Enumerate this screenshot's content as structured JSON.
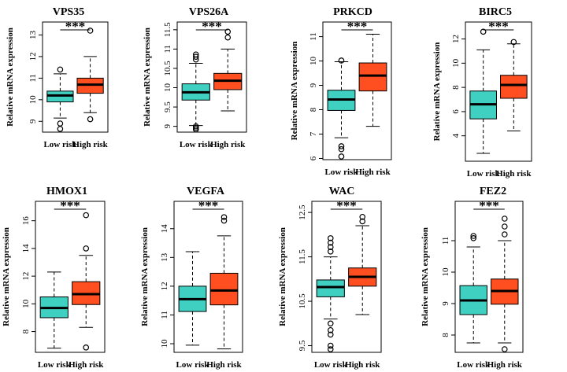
{
  "chart_data": [
    {
      "type": "box",
      "title": "VPS35",
      "ylabel": "Relative mRNA expression",
      "categories": [
        "Low risk",
        "High risk"
      ],
      "significance": "***",
      "ylim": [
        8.5,
        13.6
      ],
      "yticks": [
        9,
        10,
        11,
        12,
        13
      ],
      "colors": [
        "#3fd0c2",
        "#ff4e1f"
      ],
      "boxes": [
        {
          "whisker_low": 9.15,
          "q1": 9.9,
          "median": 10.2,
          "q3": 10.4,
          "whisker_high": 11.2,
          "outliers": [
            11.4,
            8.9,
            8.65
          ]
        },
        {
          "whisker_low": 9.4,
          "q1": 10.3,
          "median": 10.7,
          "q3": 11.0,
          "whisker_high": 12.0,
          "outliers": [
            13.2,
            9.1
          ]
        }
      ]
    },
    {
      "type": "box",
      "title": "VPS26A",
      "ylabel": "Relative mRNA expression",
      "categories": [
        "Low risk",
        "High risk"
      ],
      "significance": "***",
      "ylim": [
        8.85,
        11.7
      ],
      "yticks": [
        9.0,
        9.5,
        10.0,
        10.5,
        11.0,
        11.5
      ],
      "colors": [
        "#3fd0c2",
        "#ff4e1f"
      ],
      "boxes": [
        {
          "whisker_low": 9.02,
          "q1": 9.68,
          "median": 9.88,
          "q3": 10.1,
          "whisker_high": 10.63,
          "outliers": [
            10.86,
            10.8,
            10.73,
            9.0,
            8.96,
            8.92
          ]
        },
        {
          "whisker_low": 9.4,
          "q1": 9.95,
          "median": 10.18,
          "q3": 10.37,
          "whisker_high": 11.0,
          "outliers": [
            11.45,
            11.3
          ]
        }
      ]
    },
    {
      "type": "box",
      "title": "PRKCD",
      "ylabel": "Relative mRNA expression",
      "categories": [
        "Low risk",
        "High risk"
      ],
      "significance": "***",
      "ylim": [
        5.95,
        11.6
      ],
      "yticks": [
        6,
        7,
        8,
        9,
        10,
        11
      ],
      "colors": [
        "#3fd0c2",
        "#ff4e1f"
      ],
      "boxes": [
        {
          "whisker_low": 6.85,
          "q1": 7.97,
          "median": 8.42,
          "q3": 8.8,
          "whisker_high": 9.97,
          "outliers": [
            10.02,
            6.5,
            6.38,
            6.08
          ]
        },
        {
          "whisker_low": 7.32,
          "q1": 8.77,
          "median": 9.4,
          "q3": 9.92,
          "whisker_high": 11.1,
          "outliers": []
        }
      ]
    },
    {
      "type": "box",
      "title": "BIRC5",
      "ylabel": "Relative mRNA expression",
      "categories": [
        "Low risk",
        "High risk"
      ],
      "significance": "***",
      "ylim": [
        1.9,
        13.4
      ],
      "yticks": [
        4,
        6,
        8,
        10,
        12
      ],
      "colors": [
        "#3fd0c2",
        "#ff4e1f"
      ],
      "boxes": [
        {
          "whisker_low": 2.55,
          "q1": 5.4,
          "median": 6.6,
          "q3": 7.7,
          "whisker_high": 11.1,
          "outliers": [
            12.6
          ]
        },
        {
          "whisker_low": 4.4,
          "q1": 7.1,
          "median": 8.2,
          "q3": 9.0,
          "whisker_high": 11.6,
          "outliers": [
            11.75
          ]
        }
      ]
    },
    {
      "type": "box",
      "title": "HMOX1",
      "ylabel": "Relative mRNA expression",
      "categories": [
        "Low risk",
        "High risk"
      ],
      "significance": "***",
      "ylim": [
        6.5,
        17.4
      ],
      "yticks": [
        8,
        10,
        12,
        14,
        16
      ],
      "colors": [
        "#3fd0c2",
        "#ff4e1f"
      ],
      "boxes": [
        {
          "whisker_low": 6.8,
          "q1": 9.0,
          "median": 9.7,
          "q3": 10.5,
          "whisker_high": 12.3,
          "outliers": []
        },
        {
          "whisker_low": 8.3,
          "q1": 9.95,
          "median": 10.7,
          "q3": 11.6,
          "whisker_high": 13.5,
          "outliers": [
            16.4,
            14.0,
            6.85
          ]
        }
      ]
    },
    {
      "type": "box",
      "title": "VEGFA",
      "ylabel": "Relative mRNA expression",
      "categories": [
        "Low risk",
        "High risk"
      ],
      "significance": "***",
      "ylim": [
        9.7,
        14.95
      ],
      "yticks": [
        10,
        11,
        12,
        13,
        14
      ],
      "colors": [
        "#3fd0c2",
        "#ff4e1f"
      ],
      "boxes": [
        {
          "whisker_low": 9.95,
          "q1": 11.12,
          "median": 11.55,
          "q3": 12.0,
          "whisker_high": 13.2,
          "outliers": []
        },
        {
          "whisker_low": 9.82,
          "q1": 11.35,
          "median": 11.85,
          "q3": 12.45,
          "whisker_high": 13.75,
          "outliers": [
            14.4,
            14.28
          ]
        }
      ]
    },
    {
      "type": "box",
      "title": "WAC",
      "ylabel": "Relative mRNA expression",
      "categories": [
        "Low risk",
        "High risk"
      ],
      "significance": "***",
      "ylim": [
        9.35,
        12.75
      ],
      "yticks": [
        9.5,
        10.5,
        11.5,
        12.5
      ],
      "colors": [
        "#3fd0c2",
        "#ff4e1f"
      ],
      "boxes": [
        {
          "whisker_low": 10.1,
          "q1": 10.6,
          "median": 10.82,
          "q3": 10.98,
          "whisker_high": 11.5,
          "outliers": [
            11.92,
            11.82,
            11.72,
            11.62,
            10.0,
            9.85,
            9.75,
            9.5,
            9.42
          ]
        },
        {
          "whisker_low": 10.2,
          "q1": 10.84,
          "median": 11.05,
          "q3": 11.25,
          "whisker_high": 12.2,
          "outliers": [
            12.4,
            12.3
          ]
        }
      ]
    },
    {
      "type": "box",
      "title": "FEZ2",
      "ylabel": "Relative mRNA expression",
      "categories": [
        "Low risk",
        "High risk"
      ],
      "significance": "***",
      "ylim": [
        7.45,
        12.25
      ],
      "yticks": [
        8,
        9,
        10,
        11
      ],
      "colors": [
        "#3fd0c2",
        "#ff4e1f"
      ],
      "boxes": [
        {
          "whisker_low": 7.75,
          "q1": 8.65,
          "median": 9.1,
          "q3": 9.57,
          "whisker_high": 10.8,
          "outliers": [
            11.15,
            11.08
          ]
        },
        {
          "whisker_low": 7.75,
          "q1": 8.98,
          "median": 9.4,
          "q3": 9.78,
          "whisker_high": 11.0,
          "outliers": [
            11.7,
            11.45,
            11.2,
            7.55
          ]
        }
      ]
    }
  ]
}
